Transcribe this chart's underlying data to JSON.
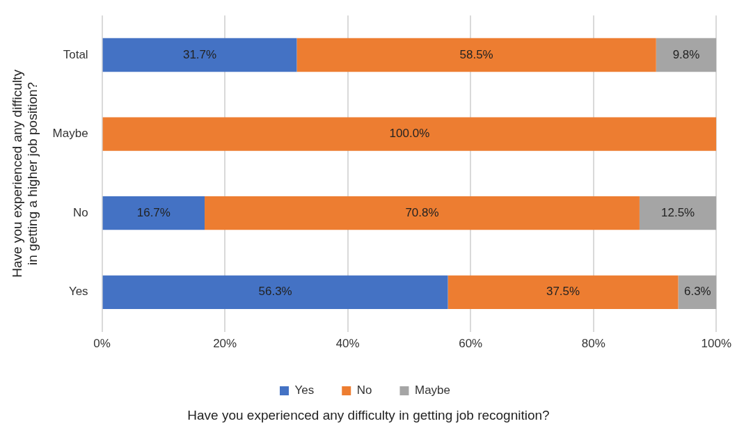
{
  "chart_data": {
    "type": "bar",
    "orientation": "horizontal",
    "stacked": true,
    "categories": [
      "Total",
      "Maybe",
      "No",
      "Yes"
    ],
    "series": [
      {
        "name": "Yes",
        "color": "#4472c4",
        "values": [
          31.7,
          null,
          16.7,
          56.3
        ],
        "value_labels": [
          "31.7%",
          null,
          "16.7%",
          "56.3%"
        ]
      },
      {
        "name": "No",
        "color": "#ed7d31",
        "values": [
          58.5,
          100.0,
          70.8,
          37.5
        ],
        "value_labels": [
          "58.5%",
          "100.0%",
          "70.8%",
          "37.5%"
        ]
      },
      {
        "name": "Maybe",
        "color": "#a5a5a5",
        "values": [
          9.8,
          null,
          12.5,
          6.3
        ],
        "value_labels": [
          "9.8%",
          null,
          "12.5%",
          "6.3%"
        ]
      }
    ],
    "xlim": [
      0,
      100
    ],
    "xticks": [
      {
        "value": 0,
        "label": "0%"
      },
      {
        "value": 20,
        "label": "20%"
      },
      {
        "value": 40,
        "label": "40%"
      },
      {
        "value": 60,
        "label": "60%"
      },
      {
        "value": 80,
        "label": "80%"
      },
      {
        "value": 100,
        "label": "100%"
      }
    ],
    "xlabel": "Have you experienced any difficulty in getting job recognition?",
    "ylabel": "Have you experienced any difficulty in getting a higher job position?",
    "grid": "x",
    "legend": "bottom"
  }
}
